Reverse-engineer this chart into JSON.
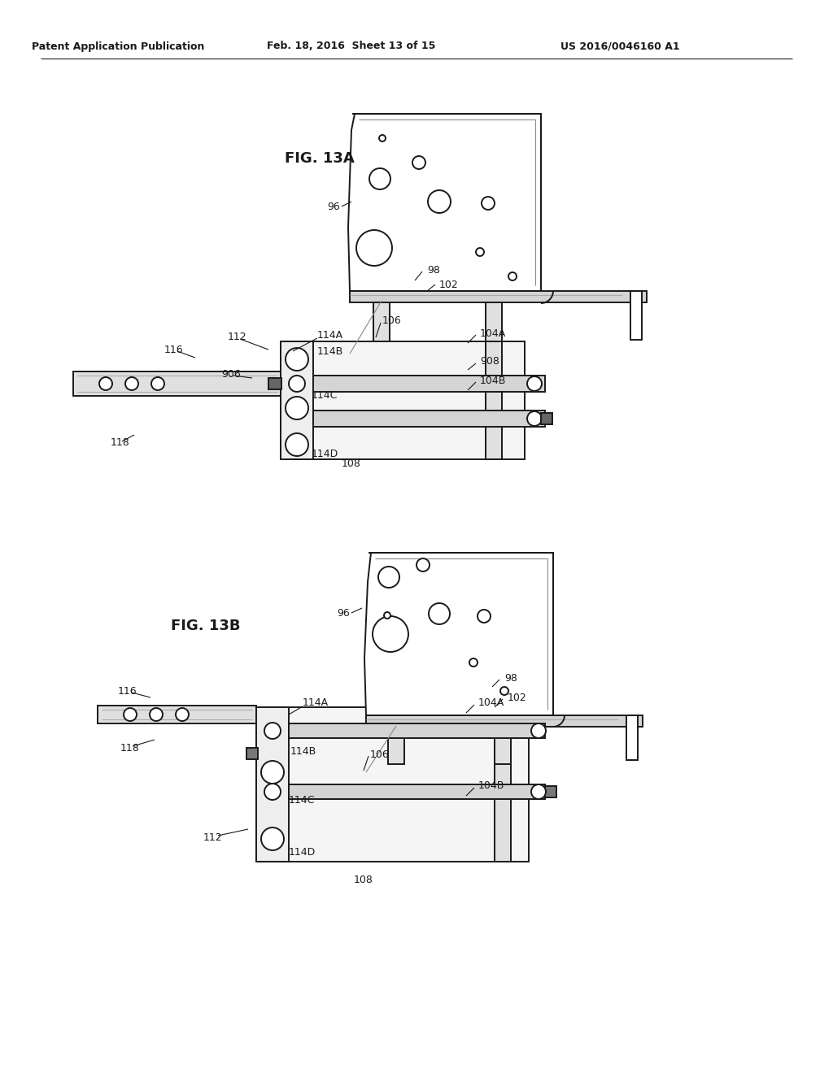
{
  "bg_color": "#ffffff",
  "line_color": "#1a1a1a",
  "header_left": "Patent Application Publication",
  "header_mid": "Feb. 18, 2016  Sheet 13 of 15",
  "header_right": "US 2016/0046160 A1",
  "fig13a_label": "FIG. 13A",
  "fig13b_label": "FIG. 13B",
  "lw": 1.4,
  "lw_thick": 2.5,
  "lw_thin": 0.8,
  "gray_light": "#e8e8e8",
  "gray_mid": "#cccccc",
  "gray_dark": "#888888",
  "gray_fill": "#d4d4d4"
}
